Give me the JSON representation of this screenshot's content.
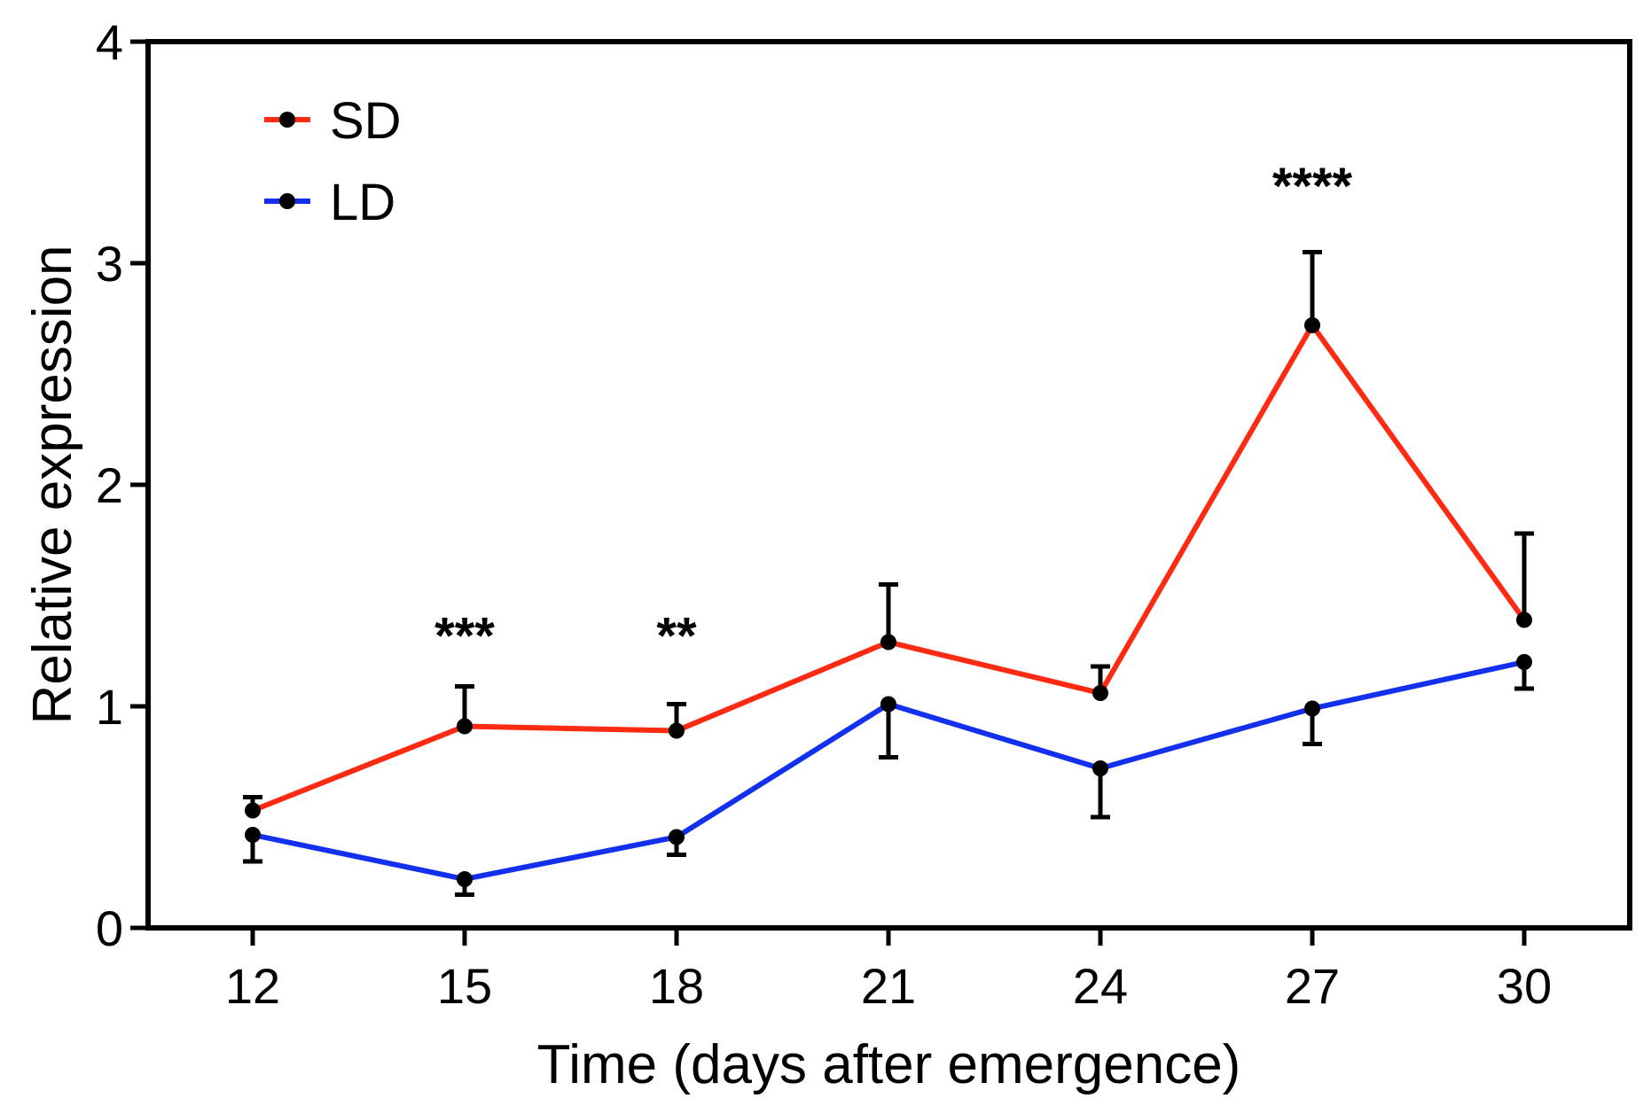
{
  "chart_data": {
    "type": "line",
    "title": "",
    "xlabel": "Time (days after emergence)",
    "ylabel": "Relative expression",
    "x": [
      12,
      15,
      18,
      21,
      24,
      27,
      30
    ],
    "x_tick_labels": [
      "12",
      "15",
      "18",
      "21",
      "24",
      "27",
      "30"
    ],
    "ylim": [
      0,
      4
    ],
    "y_ticks": [
      0,
      1,
      2,
      3,
      4
    ],
    "y_tick_labels": [
      "0",
      "1",
      "2",
      "3",
      "4"
    ],
    "grid": false,
    "legend_position": "top-left",
    "series": [
      {
        "name": "SD",
        "color": "#ff2a12",
        "values": [
          0.53,
          0.91,
          0.89,
          1.29,
          1.06,
          2.72,
          1.39
        ],
        "error": [
          0.06,
          0.18,
          0.12,
          0.26,
          0.12,
          0.33,
          0.39
        ],
        "error_direction": "up"
      },
      {
        "name": "LD",
        "color": "#1230ee",
        "values": [
          0.42,
          0.22,
          0.41,
          1.01,
          0.72,
          0.99,
          1.2
        ],
        "error": [
          0.12,
          0.07,
          0.08,
          0.24,
          0.22,
          0.16,
          0.12
        ],
        "error_direction": "down"
      }
    ],
    "annotations": [
      {
        "x": 15,
        "text": "***",
        "y": 1.35
      },
      {
        "x": 18,
        "text": "**",
        "y": 1.35
      },
      {
        "x": 27,
        "text": "****",
        "y": 3.38
      }
    ]
  }
}
